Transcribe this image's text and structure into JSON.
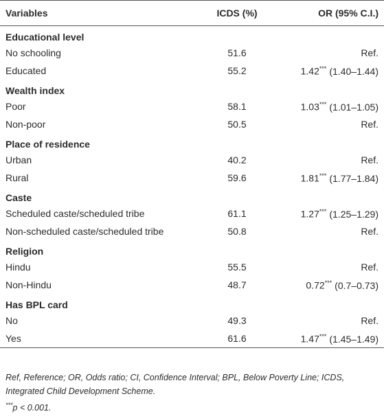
{
  "table": {
    "header": [
      "Variables",
      "ICDS (%)",
      "OR (95% C.I.)"
    ],
    "groups": [
      {
        "title": "Educational level",
        "rows": [
          {
            "label": "No schooling",
            "icds": "51.6",
            "or": {
              "text": "Ref."
            }
          },
          {
            "label": "Educated",
            "icds": "55.2",
            "or": {
              "value": "1.42",
              "sig": "***",
              "ci": "(1.40–1.44)"
            }
          }
        ]
      },
      {
        "title": "Wealth index",
        "rows": [
          {
            "label": "Poor",
            "icds": "58.1",
            "or": {
              "value": "1.03",
              "sig": "***",
              "ci": "(1.01–1.05)"
            }
          },
          {
            "label": "Non-poor",
            "icds": "50.5",
            "or": {
              "text": "Ref."
            }
          }
        ]
      },
      {
        "title": "Place of residence",
        "rows": [
          {
            "label": "Urban",
            "icds": "40.2",
            "or": {
              "text": "Ref."
            }
          },
          {
            "label": "Rural",
            "icds": "59.6",
            "or": {
              "value": "1.81",
              "sig": "***",
              "ci": "(1.77–1.84)"
            }
          }
        ]
      },
      {
        "title": "Caste",
        "rows": [
          {
            "label": "Scheduled caste/scheduled tribe",
            "icds": "61.1",
            "or": {
              "value": "1.27",
              "sig": "***",
              "ci": "(1.25–1.29)"
            }
          },
          {
            "label": "Non-scheduled caste/scheduled tribe",
            "icds": "50.8",
            "or": {
              "text": "Ref."
            }
          }
        ]
      },
      {
        "title": "Religion",
        "rows": [
          {
            "label": "Hindu",
            "icds": "55.5",
            "or": {
              "text": "Ref."
            }
          },
          {
            "label": "Non-Hindu",
            "icds": "48.7",
            "or": {
              "value": "0.72",
              "sig": "***",
              "ci": "(0.7–0.73)"
            }
          }
        ]
      },
      {
        "title": "Has BPL card",
        "rows": [
          {
            "label": "No",
            "icds": "49.3",
            "or": {
              "text": "Ref."
            }
          },
          {
            "label": "Yes",
            "icds": "61.6",
            "or": {
              "value": "1.47",
              "sig": "***",
              "ci": "(1.45–1.49)"
            }
          }
        ]
      }
    ]
  },
  "footnotes": {
    "abbreviations": "Ref, Reference; OR, Odds ratio; CI, Confidence Interval; BPL, Below Poverty Line; ICDS, Integrated Child Development Scheme.",
    "significance": {
      "sig": "***",
      "text": "p < 0.001."
    }
  }
}
